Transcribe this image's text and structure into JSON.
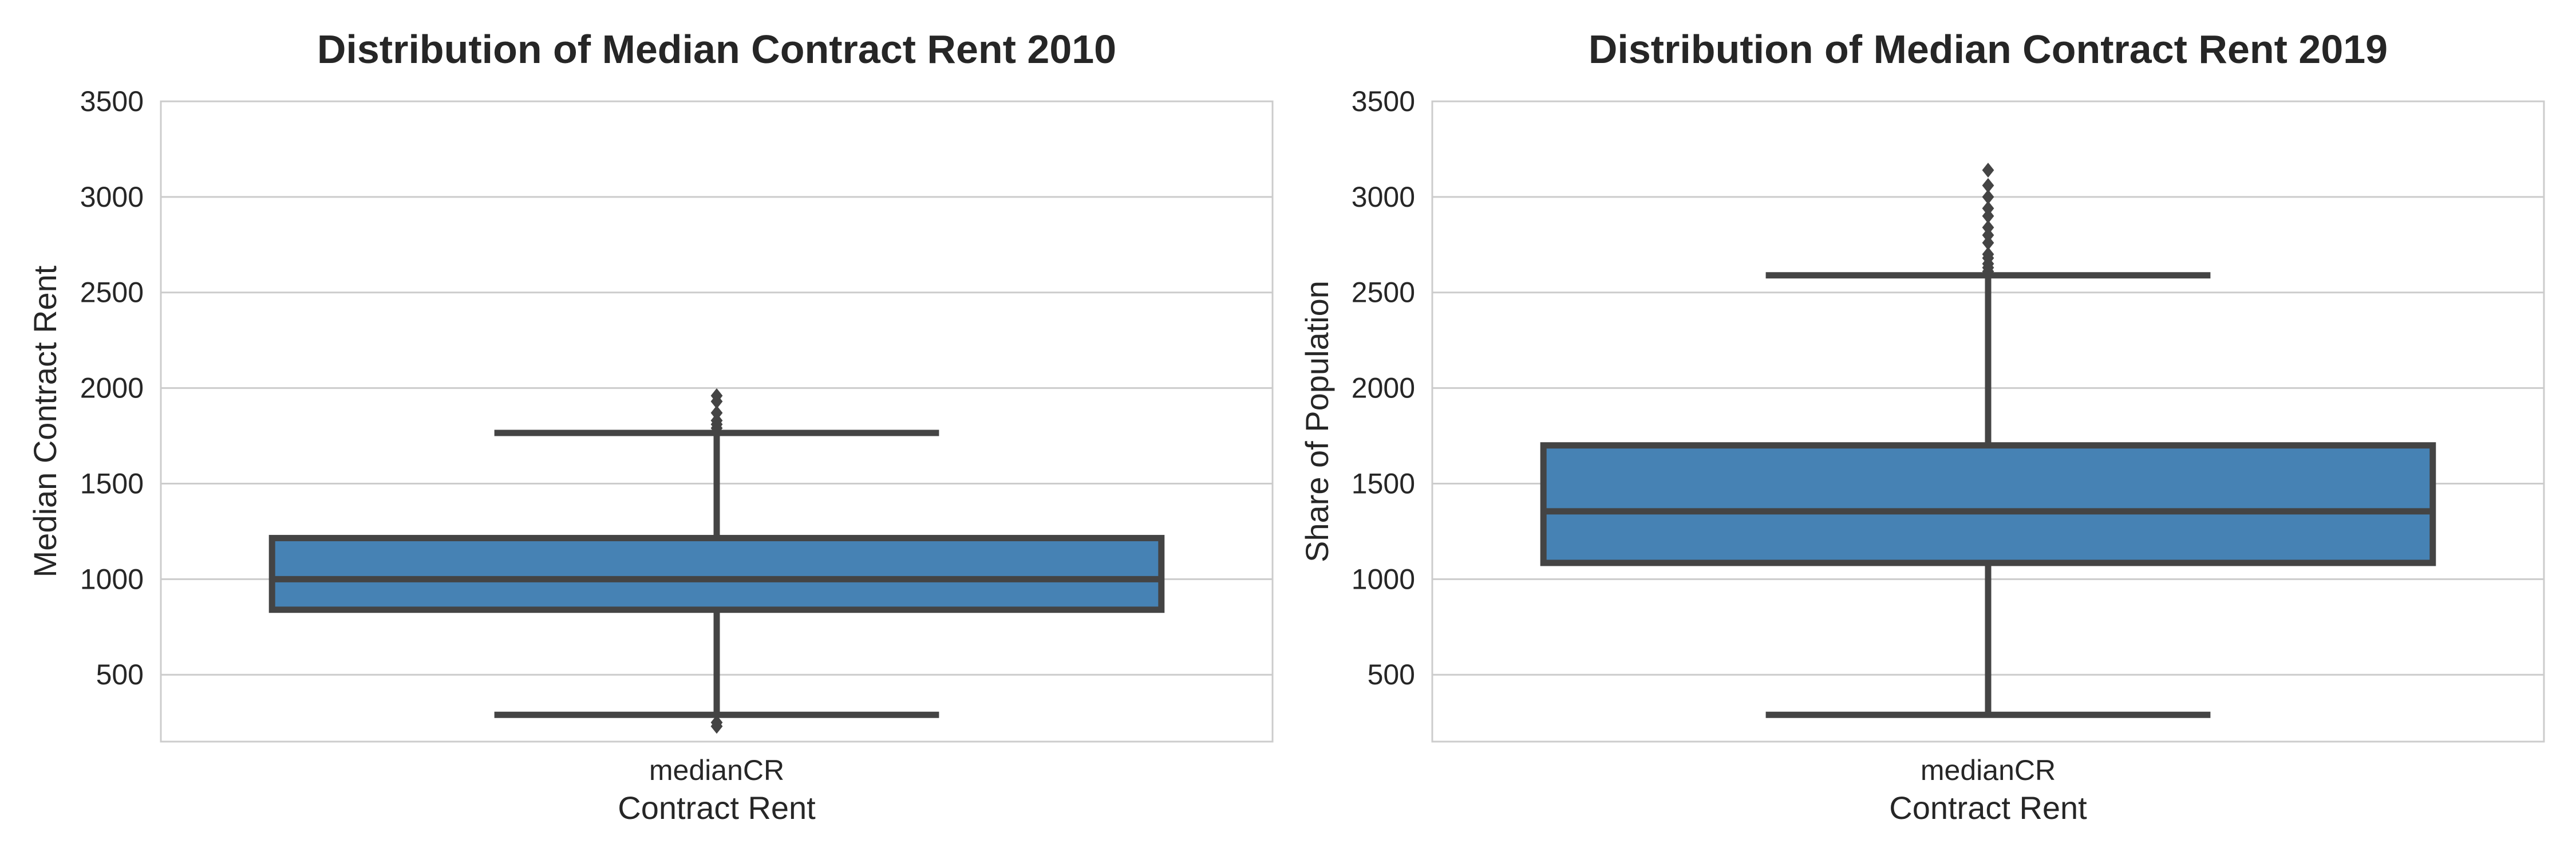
{
  "chart_data": [
    {
      "type": "box",
      "title": "Distribution of Median Contract Rent 2010",
      "xlabel": "Contract Rent",
      "ylabel": "Median Contract Rent",
      "ylim": [
        150,
        3500
      ],
      "yticks": [
        500,
        1000,
        1500,
        2000,
        2500,
        3000,
        3500
      ],
      "grid": true,
      "box_color": "#4682b4",
      "line_color": "#444444",
      "categories": [
        "medianCR"
      ],
      "boxes": [
        {
          "category": "medianCR",
          "whisker_low": 290,
          "q1": 840,
          "median": 1000,
          "q3": 1215,
          "whisker_high": 1765,
          "outliers": [
            230,
            250,
            1790,
            1810,
            1830,
            1870,
            1930,
            1960
          ]
        }
      ]
    },
    {
      "type": "box",
      "title": "Distribution of Median Contract Rent 2019",
      "xlabel": "Contract Rent",
      "ylabel": "Share of Population",
      "ylim": [
        150,
        3500
      ],
      "yticks": [
        500,
        1000,
        1500,
        2000,
        2500,
        3000,
        3500
      ],
      "grid": true,
      "box_color": "#4682b4",
      "line_color": "#444444",
      "categories": [
        "medianCR"
      ],
      "boxes": [
        {
          "category": "medianCR",
          "whisker_low": 290,
          "q1": 1085,
          "median": 1355,
          "q3": 1700,
          "whisker_high": 2590,
          "outliers": [
            2610,
            2630,
            2650,
            2680,
            2700,
            2760,
            2800,
            2840,
            2900,
            2940,
            3000,
            3060,
            3140
          ]
        }
      ]
    }
  ]
}
